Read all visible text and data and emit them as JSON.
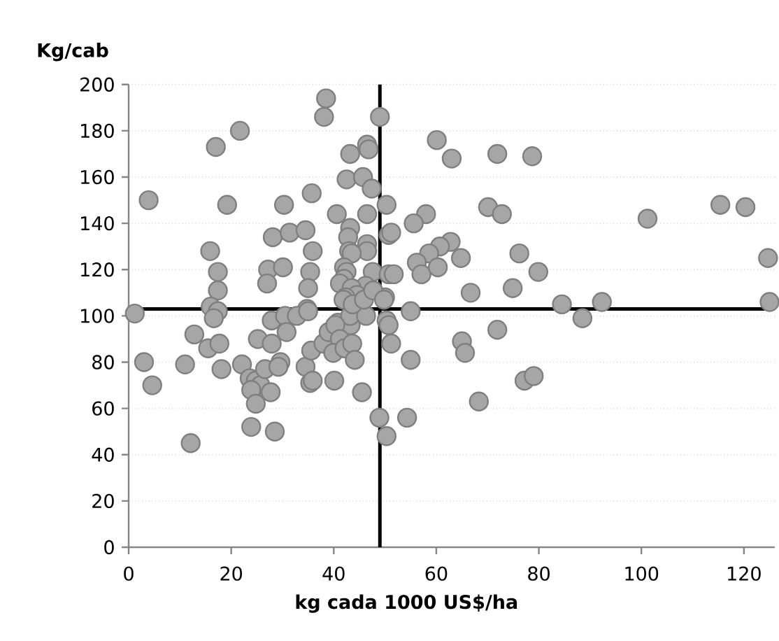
{
  "chart_data": {
    "type": "scatter",
    "xlabel": "kg cada 1000 US$/ha",
    "ylabel": "Kg/cab",
    "xlim": [
      0,
      126
    ],
    "ylim": [
      0,
      200
    ],
    "xticks": [
      0,
      20,
      40,
      60,
      80,
      100,
      120
    ],
    "yticks": [
      0,
      20,
      40,
      60,
      80,
      100,
      120,
      140,
      160,
      180,
      200
    ],
    "grid": "y",
    "ref_lines": [
      {
        "axis": "x",
        "value": 49,
        "color": "#000000"
      },
      {
        "axis": "y",
        "value": 103,
        "color": "#000000"
      }
    ],
    "series": [
      {
        "color": "#a6a6a6",
        "x": [
          3.9,
          1.2,
          17,
          21.7,
          19.2,
          15.9,
          17.4,
          17.4,
          16,
          17.4,
          16.6,
          38.5,
          38.1,
          49,
          46.5,
          46.8,
          43.2,
          42.5,
          45.7,
          47.4,
          35.7,
          30.3,
          40.6,
          46.5,
          50.3,
          28.1,
          31.4,
          34.5,
          35.9,
          43.2,
          42.8,
          46.5,
          46.5,
          43,
          43.5,
          50.7,
          42,
          42.5,
          42,
          27.2,
          30.1,
          27,
          35.4,
          35,
          47.6,
          50.7,
          46.2,
          41.2,
          43.5,
          44.5,
          42.3,
          50,
          34.8,
          27.9,
          30.5,
          32.8,
          35,
          40.8,
          43.3,
          43.2,
          46.3,
          41.9,
          43.7,
          45.9,
          47.7,
          12.8,
          15.5,
          17.7,
          3,
          4.6,
          11,
          18.1,
          22.1,
          23.6,
          24.8,
          25.7,
          23.9,
          24.8,
          26.6,
          29.6,
          29.2,
          27.7,
          25.2,
          27.9,
          30.8,
          23.9,
          28.5,
          12.1,
          34.5,
          35.6,
          35.4,
          35.9,
          38,
          39,
          40.3,
          41.2,
          39.9,
          42.1,
          43.6,
          44.1,
          40.1,
          45.5,
          48.9,
          49.8,
          50.3,
          50.7,
          51.2,
          55,
          55,
          50.3,
          54.3,
          65,
          65.6,
          71.9,
          68.3,
          77.2,
          79,
          66.7,
          74.9,
          84.5,
          88.5,
          92.3,
          125,
          60.1,
          63,
          71.9,
          78.7,
          58,
          55.6,
          51.2,
          70.1,
          72.8,
          101.2,
          115.4,
          120.3,
          124.7,
          62.8,
          60.7,
          58.6,
          56.2,
          57.1,
          60.3,
          64.8,
          76.2,
          79.9,
          51.7
        ],
        "values": [
          150,
          101,
          173,
          180,
          148,
          128,
          119,
          111,
          104,
          102,
          99,
          194,
          186,
          186,
          174,
          172,
          170,
          159,
          160,
          155,
          153,
          148,
          144,
          144,
          148,
          134,
          136,
          137,
          128,
          138,
          134,
          131,
          128,
          128,
          127,
          135,
          121,
          119,
          116,
          120,
          121,
          114,
          119,
          112,
          119,
          118,
          113,
          114,
          112,
          109,
          108,
          108,
          103,
          98,
          100,
          100,
          102,
          97,
          96,
          100,
          100,
          107,
          105,
          107,
          111,
          92,
          86,
          88,
          80,
          70,
          79,
          77,
          79,
          73,
          72,
          70,
          68,
          62,
          77,
          80,
          78,
          67,
          90,
          88,
          93,
          52,
          50,
          45,
          78,
          85,
          71,
          72,
          88,
          93,
          96,
          90,
          84,
          86,
          88,
          81,
          72,
          67,
          56,
          107,
          98,
          96,
          88,
          102,
          81,
          48,
          56,
          89,
          84,
          94,
          63,
          72,
          74,
          110,
          112,
          105,
          99,
          106,
          106,
          176,
          168,
          170,
          169,
          144,
          140,
          136,
          147,
          144,
          142,
          148,
          147,
          125,
          132,
          130,
          127,
          123,
          118,
          121,
          125,
          127,
          119,
          118
        ]
      }
    ]
  }
}
